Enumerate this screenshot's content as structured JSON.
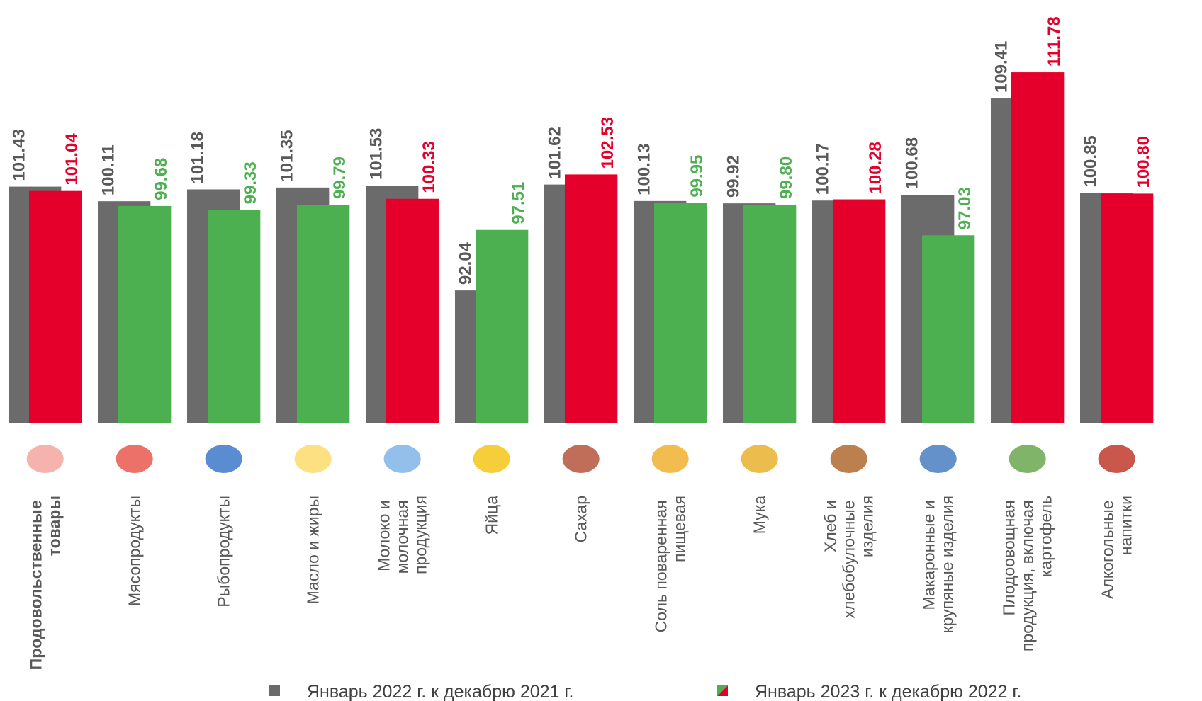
{
  "chart_data": {
    "type": "bar",
    "categories": [
      "Продовольственные\nтовары",
      "Мясопродукты",
      "Рыбопродукты",
      "Масло и жиры",
      "Молоко и\nмолочная\nпродукция",
      "Яйца",
      "Сахар",
      "Соль поваренная\nпищевая",
      "Мука",
      "Хлеб и\nхлебобулочные\nизделия",
      "Макаронные и\nкрупяные изделия",
      "Плодоовощная\nпродукция, включая\nкартофель",
      "Алкогольные\nнапитки"
    ],
    "series": [
      {
        "name": "Январь 2022 г. к декабрю 2021 г.",
        "color": "#6b6b6b",
        "values": [
          101.43,
          100.11,
          101.18,
          101.35,
          101.53,
          92.04,
          101.62,
          100.13,
          99.92,
          100.17,
          100.68,
          109.41,
          100.85
        ]
      },
      {
        "name": "Январь 2023 г. к декабрю 2022 г.",
        "colors": [
          "#e4002b",
          "#4caf50",
          "#4caf50",
          "#4caf50",
          "#e4002b",
          "#4caf50",
          "#e4002b",
          "#4caf50",
          "#4caf50",
          "#e4002b",
          "#4caf50",
          "#e4002b",
          "#e4002b"
        ],
        "values": [
          101.04,
          99.68,
          99.33,
          99.79,
          100.33,
          97.51,
          102.53,
          99.95,
          99.8,
          100.28,
          97.03,
          111.78,
          100.8
        ],
        "value_labels": [
          "101.04",
          "99.68",
          "99.33",
          "99.79",
          "100.33",
          "97.51",
          "102.53",
          "99.95",
          "99.80",
          "100.28",
          "97.03",
          "111.78",
          "100.80"
        ]
      }
    ],
    "ylim": [
      80,
      118
    ]
  }
}
